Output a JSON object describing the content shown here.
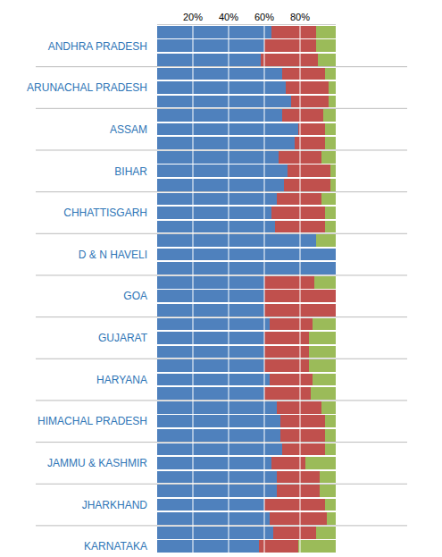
{
  "chart_data": {
    "type": "bar",
    "orientation": "horizontal",
    "stacked": true,
    "grid": true,
    "categories": [
      null,
      "ANDHRA PRADESH",
      null,
      null,
      "ARUNACHAL PRADESH",
      null,
      null,
      "ASSAM",
      null,
      null,
      "BIHAR",
      null,
      null,
      "CHHATTISGARH",
      null,
      null,
      "D & N HAVELI",
      null,
      null,
      "GOA",
      null,
      null,
      "GUJARAT",
      null,
      null,
      "HARYANA",
      null,
      null,
      "HIMACHAL PRADESH",
      null,
      null,
      "JAMMU & KASHMIR",
      null,
      null,
      "JHARKHAND",
      null,
      null,
      "KARNATAKA"
    ],
    "series": [
      {
        "color": "#4f81bd",
        "values": [
          64,
          60,
          58,
          70,
          72,
          75,
          70,
          79,
          77,
          68,
          73,
          71,
          67,
          64,
          66,
          89,
          100,
          100,
          60,
          60,
          60,
          63,
          60,
          60,
          60,
          63,
          60,
          67,
          69,
          69,
          70,
          64,
          67,
          67,
          60,
          63,
          65,
          57
        ]
      },
      {
        "color": "#c0504d",
        "values": [
          25,
          29,
          32,
          24,
          24,
          21,
          23,
          15,
          17,
          24,
          24,
          26,
          25,
          30,
          28,
          0,
          0,
          0,
          28,
          40,
          40,
          24,
          25,
          25,
          25,
          24,
          26,
          25,
          25,
          25,
          24,
          19,
          24,
          24,
          34,
          32,
          24,
          22
        ]
      },
      {
        "color": "#9bbb59",
        "values": [
          11,
          11,
          10,
          6,
          4,
          4,
          7,
          6,
          6,
          8,
          3,
          3,
          8,
          6,
          6,
          11,
          0,
          0,
          12,
          0,
          0,
          13,
          15,
          15,
          15,
          13,
          14,
          8,
          6,
          6,
          6,
          17,
          9,
          9,
          6,
          5,
          11,
          21
        ]
      }
    ],
    "xlim": [
      0,
      100
    ],
    "xticks": [
      {
        "value": 20,
        "label": "20%"
      },
      {
        "value": 40,
        "label": "40%"
      },
      {
        "value": 60,
        "label": "60%"
      },
      {
        "value": 80,
        "label": "80%"
      }
    ]
  }
}
